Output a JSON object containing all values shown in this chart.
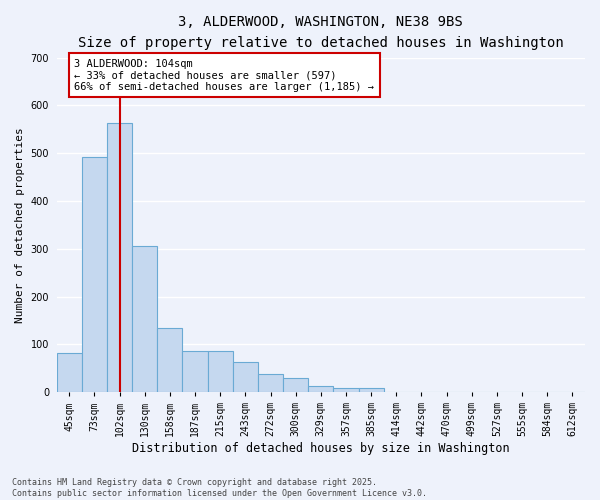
{
  "title": "3, ALDERWOOD, WASHINGTON, NE38 9BS",
  "subtitle": "Size of property relative to detached houses in Washington",
  "xlabel": "Distribution of detached houses by size in Washington",
  "ylabel": "Number of detached properties",
  "categories": [
    "45sqm",
    "73sqm",
    "102sqm",
    "130sqm",
    "158sqm",
    "187sqm",
    "215sqm",
    "243sqm",
    "272sqm",
    "300sqm",
    "329sqm",
    "357sqm",
    "385sqm",
    "414sqm",
    "442sqm",
    "470sqm",
    "499sqm",
    "527sqm",
    "555sqm",
    "584sqm",
    "612sqm"
  ],
  "values": [
    83,
    493,
    563,
    305,
    135,
    87,
    87,
    63,
    37,
    30,
    13,
    8,
    8,
    0,
    0,
    0,
    0,
    0,
    0,
    0,
    0
  ],
  "bar_color": "#c5d8ef",
  "bar_edge_color": "#6aaad4",
  "vline_x": 2,
  "vline_color": "#cc0000",
  "annotation_text": "3 ALDERWOOD: 104sqm\n← 33% of detached houses are smaller (597)\n66% of semi-detached houses are larger (1,185) →",
  "annotation_box_facecolor": "#ffffff",
  "annotation_box_edgecolor": "#cc0000",
  "ylim": [
    0,
    700
  ],
  "yticks": [
    0,
    100,
    200,
    300,
    400,
    500,
    600,
    700
  ],
  "background_color": "#eef2fb",
  "grid_color": "#ffffff",
  "footnote": "Contains HM Land Registry data © Crown copyright and database right 2025.\nContains public sector information licensed under the Open Government Licence v3.0.",
  "title_fontsize": 10,
  "subtitle_fontsize": 9,
  "xlabel_fontsize": 8.5,
  "ylabel_fontsize": 8,
  "tick_fontsize": 7,
  "annotation_fontsize": 7.5,
  "footnote_fontsize": 6
}
